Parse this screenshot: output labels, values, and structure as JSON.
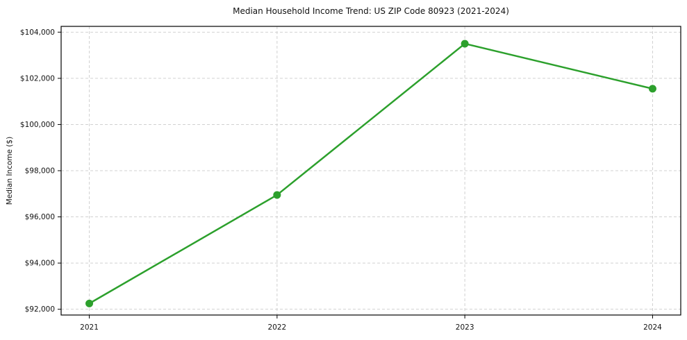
{
  "figure": {
    "background_color": "#ffffff"
  },
  "chart_data": {
    "type": "line",
    "title": "Median Household Income Trend: US ZIP Code 80923 (2021-2024)",
    "xlabel": "",
    "ylabel": "Median Income ($)",
    "x": [
      2021,
      2022,
      2023,
      2024
    ],
    "values": [
      92250,
      96950,
      103500,
      101550
    ],
    "xlim": [
      2020.85,
      2024.15
    ],
    "ylim": [
      91750,
      104250
    ],
    "xticks": [
      2021,
      2022,
      2023,
      2024
    ],
    "xtick_labels": [
      "2021",
      "2022",
      "2023",
      "2024"
    ],
    "yticks": [
      92000,
      94000,
      96000,
      98000,
      100000,
      102000,
      104000
    ],
    "ytick_labels": [
      "$92,000",
      "$94,000",
      "$96,000",
      "$98,000",
      "$100,000",
      "$102,000",
      "$104,000"
    ],
    "line_color": "#2ca02c",
    "line_width": 2.5,
    "marker": "circle",
    "marker_size": 5.5,
    "grid": {
      "visible": true,
      "style": "dashed",
      "color": "#cccccc"
    },
    "legend": {
      "visible": false
    },
    "axes_frame_color": "#000000"
  }
}
